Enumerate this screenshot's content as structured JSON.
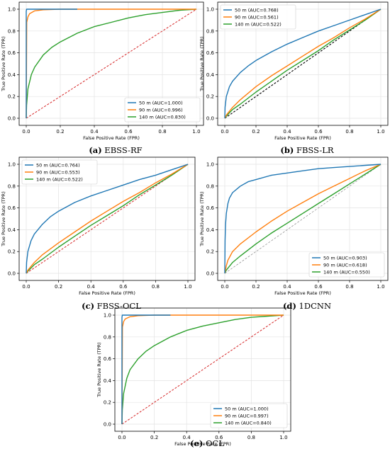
{
  "colors": {
    "blue": "#1f77b4",
    "orange": "#ff7f0e",
    "green": "#2ca02c",
    "diag_red": "#d62728",
    "diag_gray": "#888888"
  },
  "chart_data": [
    {
      "type": "line",
      "caption_letter": "(a)",
      "caption_name": "EBSS-RF",
      "xlabel": "False Positive Rate (FPR)",
      "ylabel": "True Positive Rate (TPR)",
      "xlim": [
        0,
        1
      ],
      "ylim": [
        0,
        1
      ],
      "xticks": [
        "0.0",
        "0.2",
        "0.4",
        "0.6",
        "0.8",
        "1.0"
      ],
      "yticks": [
        "0.0",
        "0.2",
        "0.4",
        "0.6",
        "0.8",
        "1.0"
      ],
      "grid": true,
      "legend": "bottom-right",
      "diagonal": "red",
      "series": [
        {
          "name": "50 m (AUC=1.000)",
          "color": "blue",
          "x": [
            0,
            0.0,
            0.002,
            0.3
          ],
          "y": [
            0,
            0.98,
            1.0,
            1.0
          ]
        },
        {
          "name": "90 m (AUC=0.996)",
          "color": "orange",
          "x": [
            0,
            0.003,
            0.01,
            0.02,
            0.05,
            0.1,
            0.2,
            1.0
          ],
          "y": [
            0,
            0.88,
            0.93,
            0.96,
            0.985,
            0.995,
            1.0,
            1.0
          ]
        },
        {
          "name": "140 m (AUC=0.830)",
          "color": "green",
          "x": [
            0,
            0.002,
            0.01,
            0.03,
            0.05,
            0.1,
            0.15,
            0.2,
            0.3,
            0.4,
            0.5,
            0.6,
            0.7,
            0.8,
            0.9,
            1.0
          ],
          "y": [
            0,
            0.12,
            0.27,
            0.4,
            0.47,
            0.58,
            0.65,
            0.7,
            0.78,
            0.84,
            0.88,
            0.92,
            0.95,
            0.97,
            0.99,
            1.0
          ]
        }
      ]
    },
    {
      "type": "line",
      "caption_letter": "(b)",
      "caption_name": "FBSS-LR",
      "xlabel": "False Positive Rate (FPR)",
      "ylabel": "True Positive Rate (TPR)",
      "xlim": [
        0,
        1
      ],
      "ylim": [
        0,
        1
      ],
      "xticks": [
        "0.0",
        "0.2",
        "0.4",
        "0.6",
        "0.8",
        "1.0"
      ],
      "yticks": [
        "0.0",
        "0.2",
        "0.4",
        "0.6",
        "0.8",
        "1.0"
      ],
      "grid": true,
      "legend": "top-left",
      "diagonal": "black",
      "series": [
        {
          "name": "50 m (AUC=0.768)",
          "color": "blue",
          "x": [
            0,
            0.002,
            0.01,
            0.03,
            0.05,
            0.1,
            0.15,
            0.2,
            0.3,
            0.4,
            0.5,
            0.6,
            0.7,
            0.8,
            0.9,
            1.0
          ],
          "y": [
            0,
            0.1,
            0.2,
            0.29,
            0.34,
            0.42,
            0.48,
            0.53,
            0.61,
            0.68,
            0.74,
            0.8,
            0.85,
            0.9,
            0.95,
            1.0
          ]
        },
        {
          "name": "90 m (AUC=0.561)",
          "color": "orange",
          "x": [
            0,
            0.01,
            0.05,
            0.1,
            0.2,
            0.3,
            0.4,
            0.5,
            0.6,
            0.7,
            0.8,
            0.9,
            1.0
          ],
          "y": [
            0,
            0.03,
            0.1,
            0.17,
            0.29,
            0.39,
            0.48,
            0.57,
            0.66,
            0.74,
            0.83,
            0.91,
            1.0
          ]
        },
        {
          "name": "140 m (AUC=0.522)",
          "color": "green",
          "x": [
            0,
            0.01,
            0.05,
            0.1,
            0.2,
            0.3,
            0.4,
            0.5,
            0.6,
            0.7,
            0.8,
            0.9,
            1.0
          ],
          "y": [
            0,
            0.02,
            0.08,
            0.13,
            0.24,
            0.34,
            0.44,
            0.53,
            0.62,
            0.72,
            0.81,
            0.9,
            1.0
          ]
        }
      ]
    },
    {
      "type": "line",
      "caption_letter": "(c)",
      "caption_name": "FBSS-OCL",
      "xlabel": "False Positive Rate (FPR)",
      "ylabel": "True Positive Rate (TPR)",
      "xlim": [
        0,
        1
      ],
      "ylim": [
        0,
        1
      ],
      "xticks": [
        "0.0",
        "0.2",
        "0.4",
        "0.6",
        "0.8",
        "1.0"
      ],
      "yticks": [
        "0.0",
        "0.2",
        "0.4",
        "0.6",
        "0.8",
        "1.0"
      ],
      "grid": true,
      "legend": "top-left",
      "diagonal": "red",
      "series": [
        {
          "name": "50 m (AUC=0.764)",
          "color": "blue",
          "x": [
            0,
            0.002,
            0.01,
            0.03,
            0.05,
            0.1,
            0.15,
            0.2,
            0.3,
            0.4,
            0.5,
            0.6,
            0.7,
            0.8,
            0.9,
            1.0
          ],
          "y": [
            0,
            0.1,
            0.2,
            0.3,
            0.36,
            0.45,
            0.52,
            0.57,
            0.65,
            0.71,
            0.76,
            0.81,
            0.86,
            0.9,
            0.95,
            1.0
          ]
        },
        {
          "name": "90 m (AUC=0.553)",
          "color": "orange",
          "x": [
            0,
            0.01,
            0.05,
            0.1,
            0.2,
            0.3,
            0.4,
            0.5,
            0.6,
            0.7,
            0.8,
            0.9,
            1.0
          ],
          "y": [
            0,
            0.03,
            0.1,
            0.17,
            0.28,
            0.38,
            0.48,
            0.57,
            0.66,
            0.74,
            0.83,
            0.91,
            1.0
          ]
        },
        {
          "name": "140 m (AUC=0.522)",
          "color": "green",
          "x": [
            0,
            0.01,
            0.05,
            0.1,
            0.2,
            0.3,
            0.4,
            0.5,
            0.6,
            0.7,
            0.8,
            0.9,
            1.0
          ],
          "y": [
            0,
            0.02,
            0.08,
            0.13,
            0.24,
            0.34,
            0.44,
            0.53,
            0.62,
            0.72,
            0.81,
            0.9,
            1.0
          ]
        }
      ]
    },
    {
      "type": "line",
      "caption_letter": "(d)",
      "caption_name": "1DCNN",
      "xlabel": "False Positive Rate (FPR)",
      "ylabel": "True Positive Rate (TPR)",
      "xlim": [
        0,
        1
      ],
      "ylim": [
        0,
        1
      ],
      "xticks": [
        "0.0",
        "0.2",
        "0.4",
        "0.6",
        "0.8",
        "1.0"
      ],
      "yticks": [
        "0.0",
        "0.2",
        "0.4",
        "0.6",
        "0.8",
        "1.0"
      ],
      "grid": true,
      "legend": "bottom-right",
      "diagonal": "gray",
      "series": [
        {
          "name": "50 m (AUC=0.903)",
          "color": "blue",
          "x": [
            0,
            0.002,
            0.005,
            0.01,
            0.02,
            0.03,
            0.05,
            0.1,
            0.15,
            0.2,
            0.3,
            0.4,
            0.5,
            0.6,
            0.7,
            0.8,
            0.9,
            1.0
          ],
          "y": [
            0,
            0.3,
            0.45,
            0.55,
            0.64,
            0.69,
            0.74,
            0.8,
            0.84,
            0.86,
            0.9,
            0.92,
            0.94,
            0.96,
            0.97,
            0.98,
            0.99,
            1.0
          ]
        },
        {
          "name": "90 m (AUC=0.618)",
          "color": "orange",
          "x": [
            0,
            0.01,
            0.02,
            0.05,
            0.1,
            0.2,
            0.3,
            0.4,
            0.5,
            0.6,
            0.7,
            0.8,
            0.9,
            1.0
          ],
          "y": [
            0,
            0.07,
            0.12,
            0.2,
            0.27,
            0.38,
            0.48,
            0.57,
            0.65,
            0.73,
            0.8,
            0.87,
            0.94,
            1.0
          ]
        },
        {
          "name": "140 m (AUC=0.550)",
          "color": "green",
          "x": [
            0,
            0.01,
            0.05,
            0.1,
            0.2,
            0.3,
            0.4,
            0.5,
            0.6,
            0.7,
            0.8,
            0.9,
            1.0
          ],
          "y": [
            0,
            0.03,
            0.1,
            0.16,
            0.27,
            0.37,
            0.46,
            0.55,
            0.64,
            0.73,
            0.82,
            0.91,
            1.0
          ]
        }
      ]
    },
    {
      "type": "line",
      "caption_letter": "(e)",
      "caption_name": "OCL",
      "xlabel": "False Positive Rate (FPR)",
      "ylabel": "True Positive Rate (TPR)",
      "xlim": [
        0,
        1
      ],
      "ylim": [
        0,
        1
      ],
      "xticks": [
        "0.0",
        "0.2",
        "0.4",
        "0.6",
        "0.8",
        "1.0"
      ],
      "yticks": [
        "0.0",
        "0.2",
        "0.4",
        "0.6",
        "0.8",
        "1.0"
      ],
      "grid": true,
      "legend": "bottom-right",
      "diagonal": "red",
      "series": [
        {
          "name": "50 m (AUC=1.000)",
          "color": "blue",
          "x": [
            0,
            0.0,
            0.002,
            0.3
          ],
          "y": [
            0,
            0.98,
            1.0,
            1.0
          ]
        },
        {
          "name": "90 m (AUC=0.997)",
          "color": "orange",
          "x": [
            0,
            0.003,
            0.01,
            0.02,
            0.05,
            0.1,
            0.2,
            1.0
          ],
          "y": [
            0,
            0.89,
            0.94,
            0.965,
            0.985,
            0.995,
            1.0,
            1.0
          ]
        },
        {
          "name": "140 m (AUC=0.840)",
          "color": "green",
          "x": [
            0,
            0.002,
            0.01,
            0.03,
            0.05,
            0.1,
            0.15,
            0.2,
            0.3,
            0.4,
            0.5,
            0.6,
            0.7,
            0.8,
            0.9,
            1.0
          ],
          "y": [
            0,
            0.13,
            0.28,
            0.42,
            0.5,
            0.6,
            0.67,
            0.72,
            0.8,
            0.86,
            0.9,
            0.93,
            0.96,
            0.98,
            0.99,
            1.0
          ]
        }
      ]
    }
  ]
}
